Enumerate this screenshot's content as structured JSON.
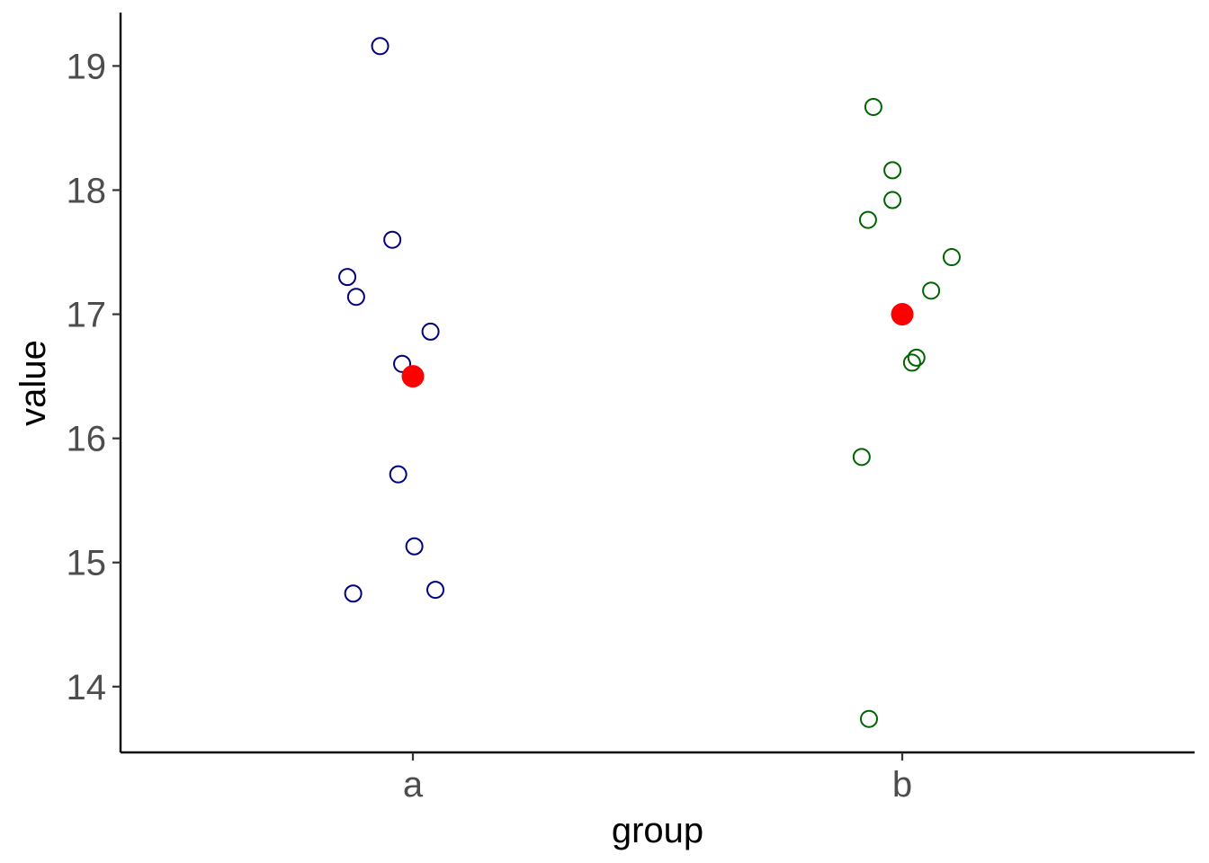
{
  "chart_data": {
    "type": "scatter",
    "title": "",
    "xlabel": "group",
    "ylabel": "value",
    "categories": [
      "a",
      "b"
    ],
    "ylim": [
      13.47,
      19.43
    ],
    "yticks": [
      14,
      15,
      16,
      17,
      18,
      19
    ],
    "grid": false,
    "legend": "none",
    "series": [
      {
        "category": "a",
        "color": "#000080",
        "marker": "open-circle",
        "points": [
          {
            "x_jitter": -0.067,
            "y": 19.16
          },
          {
            "x_jitter": -0.042,
            "y": 17.6
          },
          {
            "x_jitter": -0.134,
            "y": 17.3
          },
          {
            "x_jitter": -0.116,
            "y": 17.14
          },
          {
            "x_jitter": 0.036,
            "y": 16.86
          },
          {
            "x_jitter": -0.022,
            "y": 16.6
          },
          {
            "x_jitter": -0.03,
            "y": 15.71
          },
          {
            "x_jitter": 0.003,
            "y": 15.13
          },
          {
            "x_jitter": -0.122,
            "y": 14.75
          },
          {
            "x_jitter": 0.046,
            "y": 14.78
          }
        ]
      },
      {
        "category": "b",
        "color": "#006400",
        "marker": "open-circle",
        "points": [
          {
            "x_jitter": -0.059,
            "y": 18.67
          },
          {
            "x_jitter": -0.02,
            "y": 18.16
          },
          {
            "x_jitter": -0.02,
            "y": 17.92
          },
          {
            "x_jitter": -0.07,
            "y": 17.76
          },
          {
            "x_jitter": 0.101,
            "y": 17.46
          },
          {
            "x_jitter": 0.059,
            "y": 17.19
          },
          {
            "x_jitter": 0.029,
            "y": 16.65
          },
          {
            "x_jitter": 0.02,
            "y": 16.61
          },
          {
            "x_jitter": -0.083,
            "y": 15.85
          },
          {
            "x_jitter": -0.068,
            "y": 13.74
          }
        ]
      }
    ],
    "means": {
      "color": "#ff0000",
      "marker": "filled-circle",
      "values": [
        {
          "category": "a",
          "y": 16.5
        },
        {
          "category": "b",
          "y": 17.0
        }
      ]
    }
  }
}
